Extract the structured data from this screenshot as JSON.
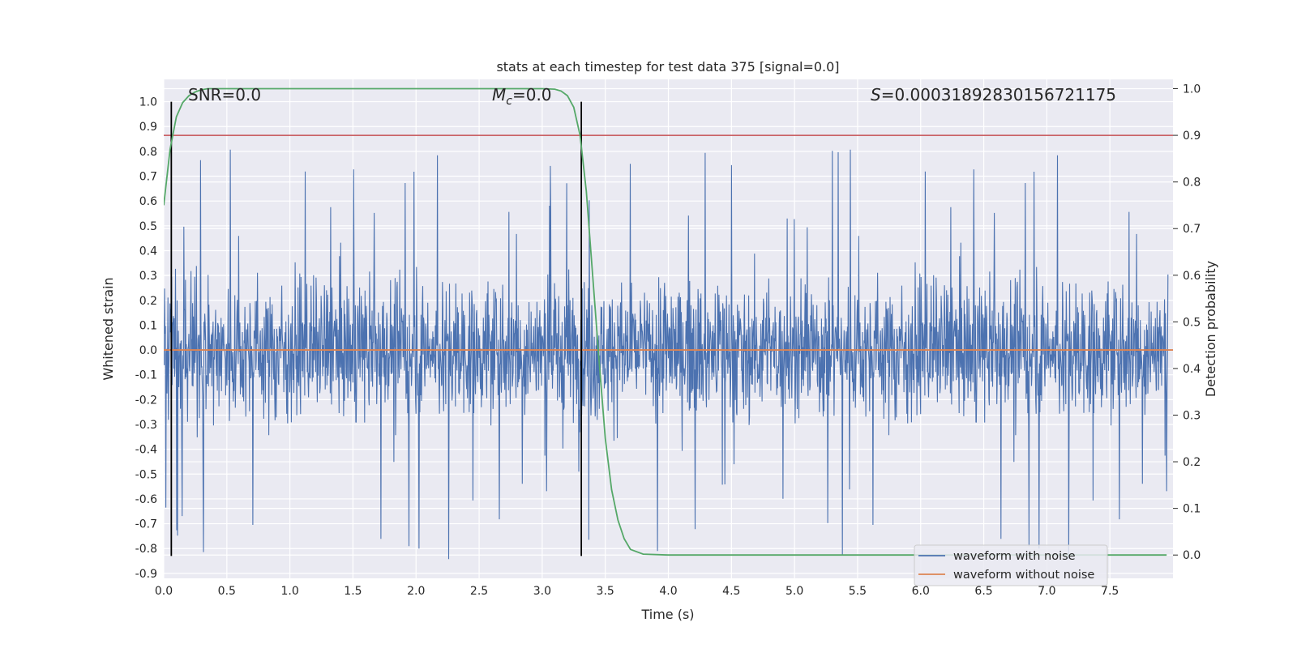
{
  "chart_data": {
    "type": "line",
    "title": "stats at each timestep for test data 375 [signal=0.0]",
    "xlabel": "Time (s)",
    "ylabel": "Whitened strain",
    "y2label": "Detection probability",
    "xlim": [
      0.0,
      8.0
    ],
    "ylim": [
      -0.92,
      1.09
    ],
    "y2lim": [
      -0.05,
      1.02
    ],
    "xticks": [
      "0.0",
      "0.5",
      "1.0",
      "1.5",
      "2.0",
      "2.5",
      "3.0",
      "3.5",
      "4.0",
      "4.5",
      "5.0",
      "5.5",
      "6.0",
      "6.5",
      "7.0",
      "7.5"
    ],
    "yticks": [
      "1.0",
      "0.9",
      "0.8",
      "0.7",
      "0.6",
      "0.5",
      "0.4",
      "0.3",
      "0.2",
      "0.1",
      "0.0",
      "-0.1",
      "-0.2",
      "-0.3",
      "-0.4",
      "-0.5",
      "-0.6",
      "-0.7",
      "-0.8",
      "-0.9"
    ],
    "y2ticks": [
      "1.0",
      "0.9",
      "0.8",
      "0.7",
      "0.6",
      "0.5",
      "0.4",
      "0.3",
      "0.2",
      "0.1",
      "0.0"
    ],
    "grid": true,
    "annotations": {
      "snr": "SNR=0.0",
      "mc_symbol": "M",
      "mc_sub": "c",
      "mc_value": "=0.0",
      "s_symbol": "S",
      "s_value": "=0.00031892830156721175"
    },
    "series": [
      {
        "name": "waveform with noise",
        "color": "#4c72b0",
        "axis": "left",
        "description": "whitened noise, amplitude typically within ±0.3 with spikes up to about ±0.9"
      },
      {
        "name": "waveform without noise",
        "color": "#dd8452",
        "axis": "left",
        "values_constant": 0.0
      },
      {
        "name": "detection probability",
        "color": "#55a868",
        "axis": "right",
        "x": [
          0.0,
          0.05,
          0.1,
          0.15,
          0.2,
          0.25,
          0.3,
          0.35,
          0.4,
          0.5,
          1.0,
          2.0,
          3.0,
          3.1,
          3.15,
          3.2,
          3.25,
          3.3,
          3.35,
          3.4,
          3.45,
          3.5,
          3.55,
          3.6,
          3.65,
          3.7,
          3.8,
          4.0,
          5.0,
          6.0,
          7.0,
          7.95
        ],
        "values": [
          0.75,
          0.87,
          0.94,
          0.97,
          0.985,
          0.993,
          0.998,
          1.0,
          1.0,
          1.0,
          1.0,
          1.0,
          1.0,
          0.999,
          0.995,
          0.985,
          0.96,
          0.9,
          0.78,
          0.6,
          0.42,
          0.25,
          0.14,
          0.075,
          0.035,
          0.012,
          0.002,
          0.0,
          0.0,
          0.0,
          0.0,
          0.0
        ]
      }
    ],
    "threshold_line": {
      "axis": "right",
      "value": 0.9,
      "color": "#c44e52"
    },
    "vertical_lines": {
      "x": [
        0.06,
        3.31
      ],
      "ymin": -0.83,
      "ymax": 1.0,
      "color": "#000000"
    },
    "legend": {
      "placement": "lower-right",
      "entries": [
        "waveform with noise",
        "waveform without noise"
      ]
    }
  }
}
